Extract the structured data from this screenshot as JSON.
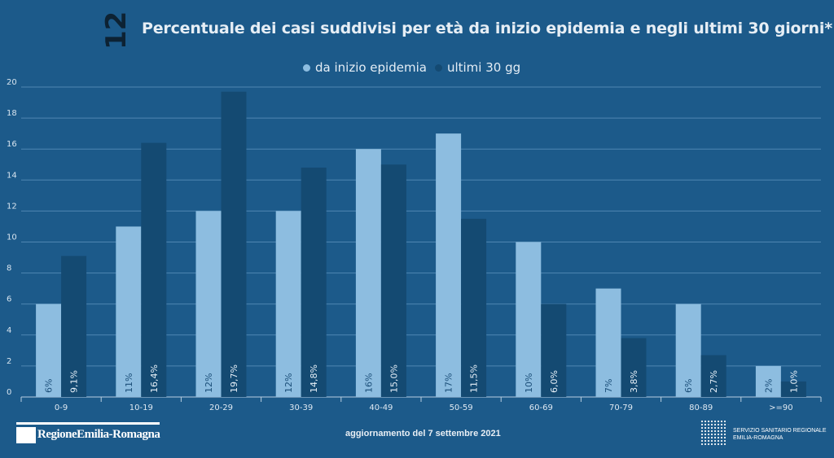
{
  "page_number": "12",
  "title": "Percentuale dei casi suddivisi per età da inizio epidemia e negli ultimi 30 giorni*",
  "footer": {
    "left_logo": "RegioneEmilia-Romagna",
    "update_note": "aggiornamento del 7 settembre 2021",
    "right_logo_line1": "SERVIZIO SANITARIO REGIONALE",
    "right_logo_line2": "EMILIA-ROMAGNA"
  },
  "colors": {
    "background": "#1c5a8a",
    "series_1": "#8dbde0",
    "series_2": "#144a72",
    "gridline": "#4f86b2"
  },
  "chart_data": {
    "type": "bar",
    "categories": [
      "0-9",
      "10-19",
      "20-29",
      "30-39",
      "40-49",
      "50-59",
      "60-69",
      "70-79",
      "80-89",
      ">=90"
    ],
    "series": [
      {
        "name": "da inizio epidemia",
        "values": [
          6,
          11,
          12,
          12,
          16,
          17,
          10,
          7,
          6,
          2
        ],
        "labels": [
          "6%",
          "11%",
          "12%",
          "12%",
          "16%",
          "17%",
          "10%",
          "7%",
          "6%",
          "2%"
        ]
      },
      {
        "name": "ultimi 30 gg",
        "values": [
          9.1,
          16.4,
          19.7,
          14.8,
          15.0,
          11.5,
          6.0,
          3.8,
          2.7,
          1.0
        ],
        "labels": [
          "9,1%",
          "16,4%",
          "19,7%",
          "14,8%",
          "15,0%",
          "11,5%",
          "6,0%",
          "3,8%",
          "2,7%",
          "1,0%"
        ]
      }
    ],
    "yticks": [
      0,
      2,
      4,
      6,
      8,
      10,
      12,
      14,
      16,
      18,
      20
    ],
    "ylim": [
      0,
      20
    ],
    "grid": true,
    "legend": "top-center"
  }
}
